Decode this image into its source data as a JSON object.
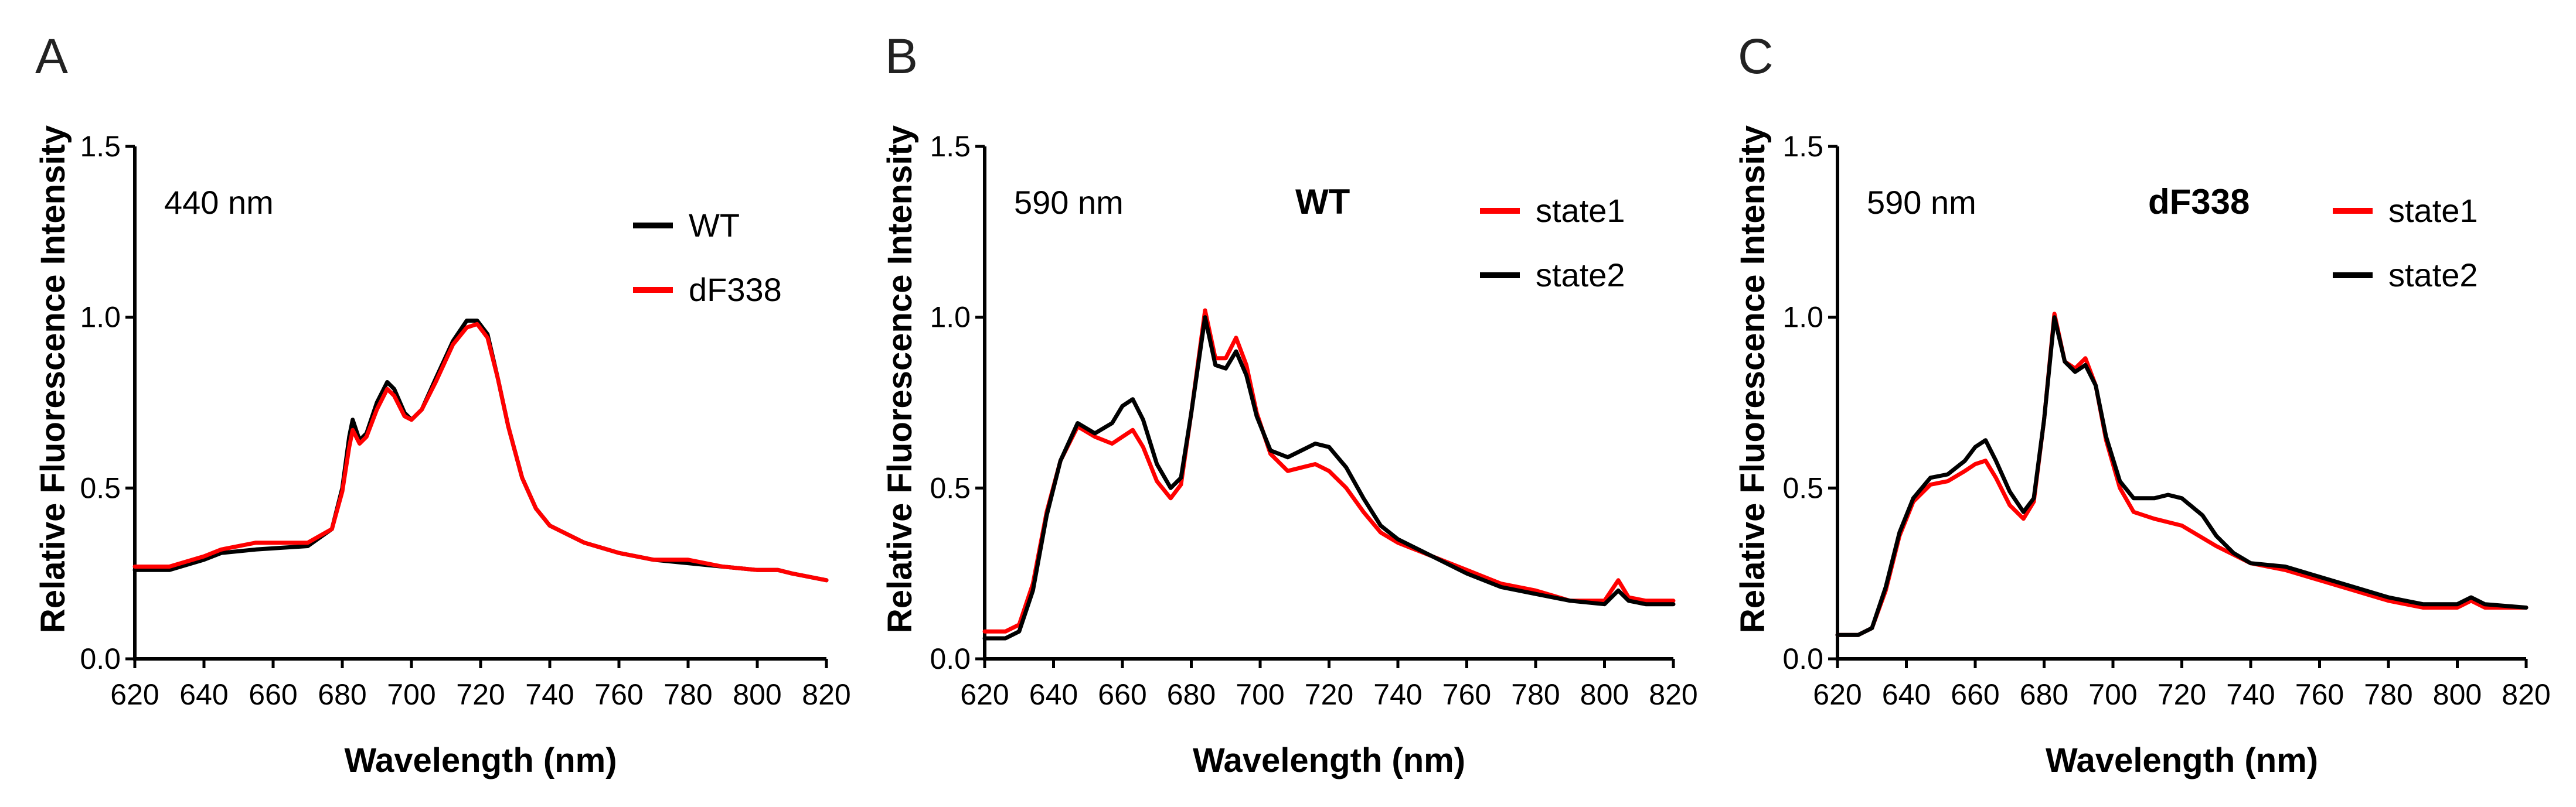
{
  "chart_data": [
    {
      "panel": "A",
      "type": "line",
      "title": "",
      "annotation": "440 nm",
      "label": "",
      "xlabel": "Wavelength (nm)",
      "ylabel": "Relative Fluorescence Intensity",
      "xlim": [
        620,
        820
      ],
      "ylim": [
        0,
        1.5
      ],
      "xticks": [
        620,
        640,
        660,
        680,
        700,
        720,
        740,
        760,
        780,
        800,
        820
      ],
      "yticks": [
        "0.0",
        "0.5",
        "1.0",
        "1.5"
      ],
      "legend_position": "top-right",
      "series": [
        {
          "name": "WT",
          "color": "#000000",
          "points": [
            [
              620,
              0.26
            ],
            [
              630,
              0.26
            ],
            [
              640,
              0.29
            ],
            [
              645,
              0.31
            ],
            [
              655,
              0.32
            ],
            [
              670,
              0.33
            ],
            [
              677,
              0.38
            ],
            [
              680,
              0.5
            ],
            [
              682,
              0.65
            ],
            [
              683,
              0.7
            ],
            [
              685,
              0.64
            ],
            [
              687,
              0.66
            ],
            [
              690,
              0.75
            ],
            [
              693,
              0.81
            ],
            [
              695,
              0.79
            ],
            [
              698,
              0.72
            ],
            [
              700,
              0.7
            ],
            [
              703,
              0.73
            ],
            [
              707,
              0.82
            ],
            [
              712,
              0.93
            ],
            [
              716,
              0.99
            ],
            [
              719,
              0.99
            ],
            [
              722,
              0.95
            ],
            [
              725,
              0.82
            ],
            [
              728,
              0.68
            ],
            [
              732,
              0.53
            ],
            [
              736,
              0.44
            ],
            [
              740,
              0.39
            ],
            [
              750,
              0.34
            ],
            [
              760,
              0.31
            ],
            [
              770,
              0.29
            ],
            [
              780,
              0.28
            ],
            [
              790,
              0.27
            ],
            [
              800,
              0.26
            ],
            [
              806,
              0.26
            ],
            [
              810,
              0.25
            ],
            [
              820,
              0.23
            ]
          ]
        },
        {
          "name": "dF338",
          "color": "#ff0000",
          "points": [
            [
              620,
              0.27
            ],
            [
              630,
              0.27
            ],
            [
              640,
              0.3
            ],
            [
              645,
              0.32
            ],
            [
              655,
              0.34
            ],
            [
              670,
              0.34
            ],
            [
              677,
              0.38
            ],
            [
              680,
              0.49
            ],
            [
              682,
              0.62
            ],
            [
              683,
              0.67
            ],
            [
              685,
              0.63
            ],
            [
              687,
              0.65
            ],
            [
              690,
              0.73
            ],
            [
              693,
              0.79
            ],
            [
              695,
              0.77
            ],
            [
              698,
              0.71
            ],
            [
              700,
              0.7
            ],
            [
              703,
              0.73
            ],
            [
              707,
              0.81
            ],
            [
              712,
              0.92
            ],
            [
              716,
              0.97
            ],
            [
              719,
              0.98
            ],
            [
              722,
              0.94
            ],
            [
              725,
              0.82
            ],
            [
              728,
              0.68
            ],
            [
              732,
              0.53
            ],
            [
              736,
              0.44
            ],
            [
              740,
              0.39
            ],
            [
              750,
              0.34
            ],
            [
              760,
              0.31
            ],
            [
              770,
              0.29
            ],
            [
              780,
              0.29
            ],
            [
              790,
              0.27
            ],
            [
              800,
              0.26
            ],
            [
              806,
              0.26
            ],
            [
              810,
              0.25
            ],
            [
              820,
              0.23
            ]
          ]
        }
      ]
    },
    {
      "panel": "B",
      "type": "line",
      "title": "",
      "annotation": "590 nm",
      "label": "WT",
      "xlabel": "Wavelength (nm)",
      "ylabel": "Relative Fluorescence Intensity",
      "xlim": [
        620,
        820
      ],
      "ylim": [
        0,
        1.5
      ],
      "xticks": [
        620,
        640,
        660,
        680,
        700,
        720,
        740,
        760,
        780,
        800,
        820
      ],
      "yticks": [
        "0.0",
        "0.5",
        "1.0",
        "1.5"
      ],
      "legend_position": "top-right",
      "series": [
        {
          "name": "state1",
          "color": "#ff0000",
          "points": [
            [
              620,
              0.08
            ],
            [
              626,
              0.08
            ],
            [
              630,
              0.1
            ],
            [
              634,
              0.22
            ],
            [
              638,
              0.43
            ],
            [
              642,
              0.58
            ],
            [
              647,
              0.68
            ],
            [
              652,
              0.65
            ],
            [
              657,
              0.63
            ],
            [
              660,
              0.65
            ],
            [
              663,
              0.67
            ],
            [
              666,
              0.62
            ],
            [
              670,
              0.52
            ],
            [
              674,
              0.47
            ],
            [
              677,
              0.51
            ],
            [
              680,
              0.72
            ],
            [
              684,
              1.02
            ],
            [
              687,
              0.88
            ],
            [
              690,
              0.88
            ],
            [
              693,
              0.94
            ],
            [
              696,
              0.86
            ],
            [
              699,
              0.72
            ],
            [
              703,
              0.6
            ],
            [
              708,
              0.55
            ],
            [
              712,
              0.56
            ],
            [
              716,
              0.57
            ],
            [
              720,
              0.55
            ],
            [
              725,
              0.5
            ],
            [
              730,
              0.43
            ],
            [
              735,
              0.37
            ],
            [
              740,
              0.34
            ],
            [
              750,
              0.3
            ],
            [
              760,
              0.26
            ],
            [
              770,
              0.22
            ],
            [
              780,
              0.2
            ],
            [
              790,
              0.17
            ],
            [
              800,
              0.17
            ],
            [
              804,
              0.23
            ],
            [
              807,
              0.18
            ],
            [
              812,
              0.17
            ],
            [
              820,
              0.17
            ]
          ]
        },
        {
          "name": "state2",
          "color": "#000000",
          "points": [
            [
              620,
              0.06
            ],
            [
              626,
              0.06
            ],
            [
              630,
              0.08
            ],
            [
              634,
              0.2
            ],
            [
              638,
              0.42
            ],
            [
              642,
              0.58
            ],
            [
              647,
              0.69
            ],
            [
              652,
              0.66
            ],
            [
              657,
              0.69
            ],
            [
              660,
              0.74
            ],
            [
              663,
              0.76
            ],
            [
              666,
              0.7
            ],
            [
              670,
              0.57
            ],
            [
              674,
              0.5
            ],
            [
              677,
              0.53
            ],
            [
              680,
              0.72
            ],
            [
              684,
              1.0
            ],
            [
              687,
              0.86
            ],
            [
              690,
              0.85
            ],
            [
              693,
              0.9
            ],
            [
              696,
              0.83
            ],
            [
              699,
              0.71
            ],
            [
              703,
              0.61
            ],
            [
              708,
              0.59
            ],
            [
              712,
              0.61
            ],
            [
              716,
              0.63
            ],
            [
              720,
              0.62
            ],
            [
              725,
              0.56
            ],
            [
              730,
              0.47
            ],
            [
              735,
              0.39
            ],
            [
              740,
              0.35
            ],
            [
              750,
              0.3
            ],
            [
              760,
              0.25
            ],
            [
              770,
              0.21
            ],
            [
              780,
              0.19
            ],
            [
              790,
              0.17
            ],
            [
              800,
              0.16
            ],
            [
              804,
              0.2
            ],
            [
              807,
              0.17
            ],
            [
              812,
              0.16
            ],
            [
              820,
              0.16
            ]
          ]
        }
      ]
    },
    {
      "panel": "C",
      "type": "line",
      "title": "",
      "annotation": "590 nm",
      "label": "dF338",
      "xlabel": "Wavelength (nm)",
      "ylabel": "Relative Fluorescence Intensity",
      "xlim": [
        620,
        820
      ],
      "ylim": [
        0,
        1.5
      ],
      "xticks": [
        620,
        640,
        660,
        680,
        700,
        720,
        740,
        760,
        780,
        800,
        820
      ],
      "yticks": [
        "0.0",
        "0.5",
        "1.0",
        "1.5"
      ],
      "legend_position": "top-right",
      "series": [
        {
          "name": "state1",
          "color": "#ff0000",
          "points": [
            [
              620,
              0.07
            ],
            [
              626,
              0.07
            ],
            [
              630,
              0.09
            ],
            [
              634,
              0.2
            ],
            [
              638,
              0.36
            ],
            [
              642,
              0.46
            ],
            [
              647,
              0.51
            ],
            [
              652,
              0.52
            ],
            [
              657,
              0.55
            ],
            [
              660,
              0.57
            ],
            [
              663,
              0.58
            ],
            [
              666,
              0.53
            ],
            [
              670,
              0.45
            ],
            [
              674,
              0.41
            ],
            [
              677,
              0.46
            ],
            [
              680,
              0.7
            ],
            [
              683,
              1.01
            ],
            [
              686,
              0.87
            ],
            [
              689,
              0.85
            ],
            [
              692,
              0.88
            ],
            [
              695,
              0.8
            ],
            [
              698,
              0.64
            ],
            [
              702,
              0.5
            ],
            [
              706,
              0.43
            ],
            [
              712,
              0.41
            ],
            [
              720,
              0.39
            ],
            [
              730,
              0.33
            ],
            [
              740,
              0.28
            ],
            [
              750,
              0.26
            ],
            [
              760,
              0.23
            ],
            [
              770,
              0.2
            ],
            [
              780,
              0.17
            ],
            [
              790,
              0.15
            ],
            [
              800,
              0.15
            ],
            [
              804,
              0.17
            ],
            [
              808,
              0.15
            ],
            [
              820,
              0.15
            ]
          ]
        },
        {
          "name": "state2",
          "color": "#000000",
          "points": [
            [
              620,
              0.07
            ],
            [
              626,
              0.07
            ],
            [
              630,
              0.09
            ],
            [
              634,
              0.21
            ],
            [
              638,
              0.37
            ],
            [
              642,
              0.47
            ],
            [
              647,
              0.53
            ],
            [
              652,
              0.54
            ],
            [
              657,
              0.58
            ],
            [
              660,
              0.62
            ],
            [
              663,
              0.64
            ],
            [
              666,
              0.58
            ],
            [
              670,
              0.49
            ],
            [
              674,
              0.43
            ],
            [
              677,
              0.47
            ],
            [
              680,
              0.7
            ],
            [
              683,
              1.0
            ],
            [
              686,
              0.87
            ],
            [
              689,
              0.84
            ],
            [
              692,
              0.86
            ],
            [
              695,
              0.8
            ],
            [
              698,
              0.65
            ],
            [
              702,
              0.52
            ],
            [
              706,
              0.47
            ],
            [
              712,
              0.47
            ],
            [
              716,
              0.48
            ],
            [
              720,
              0.47
            ],
            [
              726,
              0.42
            ],
            [
              730,
              0.36
            ],
            [
              735,
              0.31
            ],
            [
              740,
              0.28
            ],
            [
              750,
              0.27
            ],
            [
              760,
              0.24
            ],
            [
              770,
              0.21
            ],
            [
              780,
              0.18
            ],
            [
              790,
              0.16
            ],
            [
              800,
              0.16
            ],
            [
              804,
              0.18
            ],
            [
              808,
              0.16
            ],
            [
              820,
              0.15
            ]
          ]
        }
      ]
    }
  ]
}
